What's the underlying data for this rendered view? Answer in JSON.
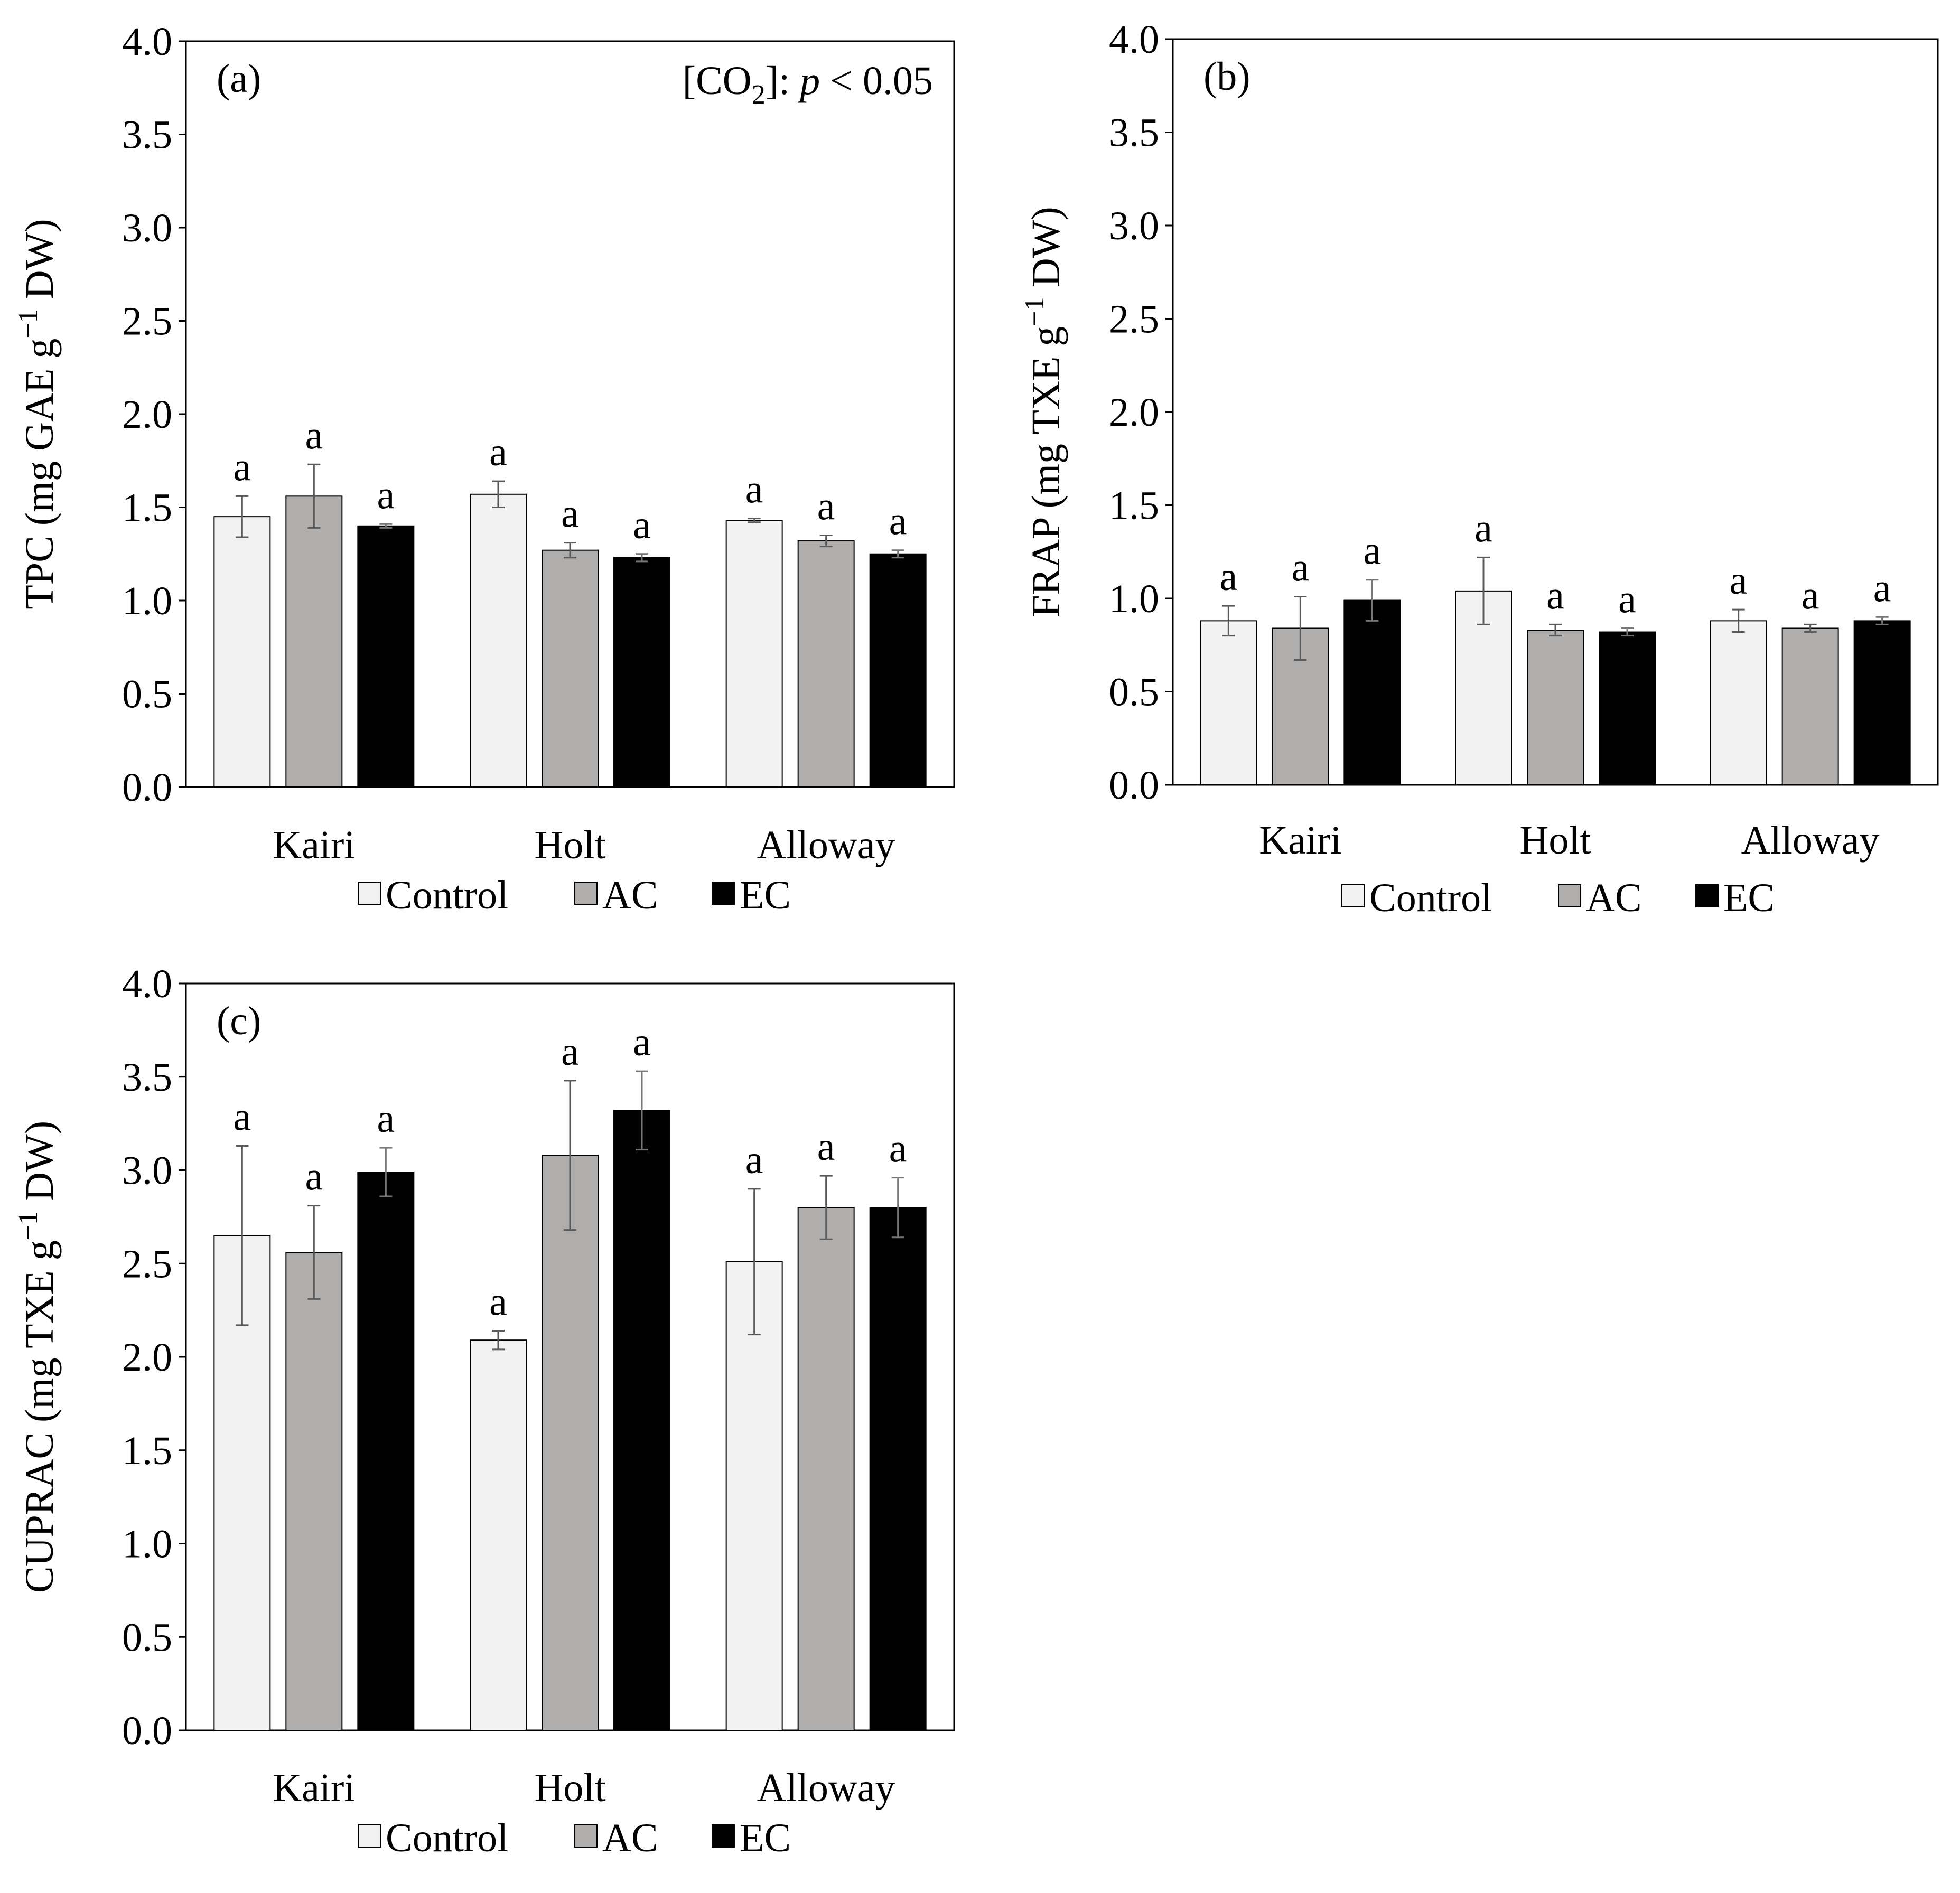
{
  "figure": {
    "colors": {
      "Control": "#f2f2f2",
      "AC": "#b0adad",
      "EC": "#000000",
      "frame": "#000000",
      "errorbar": "#5a5a5a"
    }
  },
  "chart_data": [
    {
      "id": "a",
      "type": "bar",
      "panel_label": "(a)",
      "annotation": {
        "prefix": "[CO",
        "sub": "2",
        "mid": "]: ",
        "italic": "p",
        "suffix": " < 0.05"
      },
      "ylabel": {
        "pre": "TPC (mg GAE g",
        "sup": "−1",
        "post": " DW)"
      },
      "ylim": [
        0,
        4
      ],
      "yticks": [
        "0.0",
        "0.5",
        "1.0",
        "1.5",
        "2.0",
        "2.5",
        "3.0",
        "3.5",
        "4.0"
      ],
      "categories": [
        "Kairi",
        "Holt",
        "Alloway"
      ],
      "legend": [
        "Control",
        "AC",
        "EC"
      ],
      "series": [
        {
          "name": "Control",
          "values": [
            1.45,
            1.57,
            1.43
          ],
          "errors": [
            0.11,
            0.07,
            0.01
          ],
          "letters": [
            "a",
            "a",
            "a"
          ]
        },
        {
          "name": "AC",
          "values": [
            1.56,
            1.27,
            1.32
          ],
          "errors": [
            0.17,
            0.04,
            0.03
          ],
          "letters": [
            "a",
            "a",
            "a"
          ]
        },
        {
          "name": "EC",
          "values": [
            1.4,
            1.23,
            1.25
          ],
          "errors": [
            0.01,
            0.02,
            0.02
          ],
          "letters": [
            "a",
            "a",
            "a"
          ]
        }
      ]
    },
    {
      "id": "b",
      "type": "bar",
      "panel_label": "(b)",
      "ylabel": {
        "pre": "FRAP  (mg TXE g",
        "sup": "−1",
        "post": " DW)"
      },
      "ylim": [
        0,
        4
      ],
      "yticks": [
        "0.0",
        "0.5",
        "1.0",
        "1.5",
        "2.0",
        "2.5",
        "3.0",
        "3.5",
        "4.0"
      ],
      "categories": [
        "Kairi",
        "Holt",
        "Alloway"
      ],
      "legend": [
        "Control",
        "AC",
        "EC"
      ],
      "series": [
        {
          "name": "Control",
          "values": [
            0.88,
            1.04,
            0.88
          ],
          "errors": [
            0.08,
            0.18,
            0.06
          ],
          "letters": [
            "a",
            "a",
            "a"
          ]
        },
        {
          "name": "AC",
          "values": [
            0.84,
            0.83,
            0.84
          ],
          "errors": [
            0.17,
            0.03,
            0.02
          ],
          "letters": [
            "a",
            "a",
            "a"
          ]
        },
        {
          "name": "EC",
          "values": [
            0.99,
            0.82,
            0.88
          ],
          "errors": [
            0.11,
            0.02,
            0.02
          ],
          "letters": [
            "a",
            "a",
            "a"
          ]
        }
      ]
    },
    {
      "id": "c",
      "type": "bar",
      "panel_label": "(c)",
      "ylabel": {
        "pre": "CUPRAC (mg TXE g",
        "sup": "−1",
        "post": " DW)"
      },
      "ylim": [
        0,
        4
      ],
      "yticks": [
        "0.0",
        "0.5",
        "1.0",
        "1.5",
        "2.0",
        "2.5",
        "3.0",
        "3.5",
        "4.0"
      ],
      "categories": [
        "Kairi",
        "Holt",
        "Alloway"
      ],
      "legend": [
        "Control",
        "AC",
        "EC"
      ],
      "series": [
        {
          "name": "Control",
          "values": [
            2.65,
            2.09,
            2.51
          ],
          "errors": [
            0.48,
            0.05,
            0.39
          ],
          "letters": [
            "a",
            "a",
            "a"
          ]
        },
        {
          "name": "AC",
          "values": [
            2.56,
            3.08,
            2.8
          ],
          "errors": [
            0.25,
            0.4,
            0.17
          ],
          "letters": [
            "a",
            "a",
            "a"
          ]
        },
        {
          "name": "EC",
          "values": [
            2.99,
            3.32,
            2.8
          ],
          "errors": [
            0.13,
            0.21,
            0.16
          ],
          "letters": [
            "a",
            "a",
            "a"
          ]
        }
      ]
    }
  ]
}
